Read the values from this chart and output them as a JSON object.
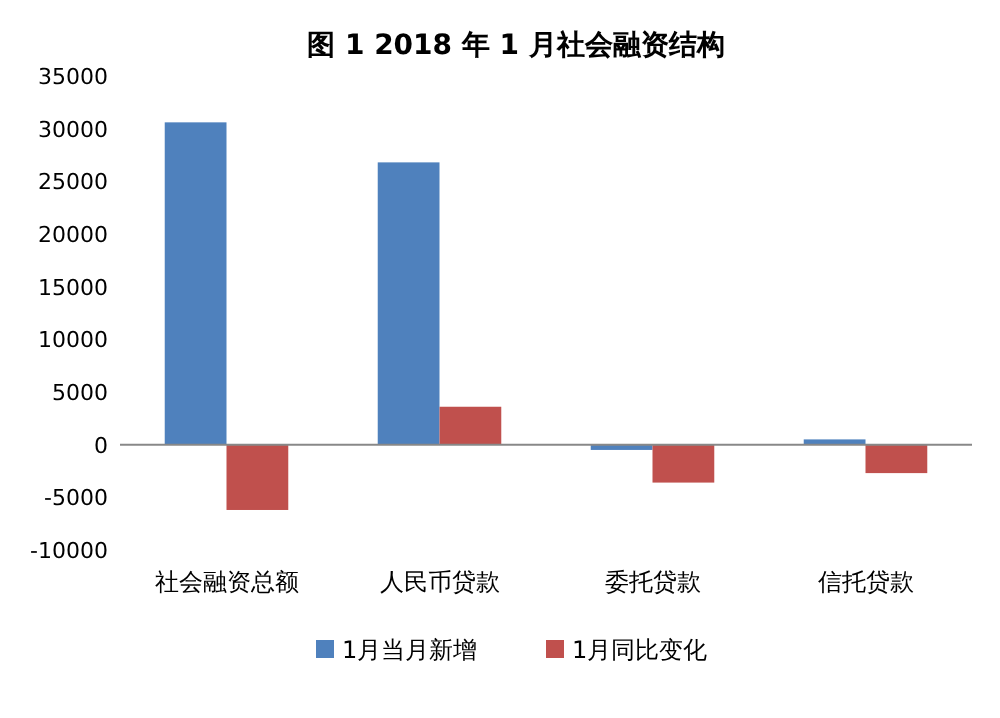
{
  "chart_data": {
    "type": "bar",
    "title": "图 1  2018 年 1 月社会融资结构",
    "categories": [
      "社会融资总额",
      "人民币贷款",
      "委托贷款",
      "信托贷款"
    ],
    "series": [
      {
        "name": "1月当月新增",
        "color": "#4f81bd",
        "values": [
          30600,
          26800,
          -500,
          500
        ]
      },
      {
        "name": "1月同比变化",
        "color": "#c0504d",
        "values": [
          -6200,
          3600,
          -3600,
          -2700
        ]
      }
    ],
    "ylim": [
      -10000,
      35000
    ],
    "yticks": [
      -10000,
      -5000,
      0,
      5000,
      10000,
      15000,
      20000,
      25000,
      30000,
      35000
    ],
    "legend": "bottom"
  }
}
